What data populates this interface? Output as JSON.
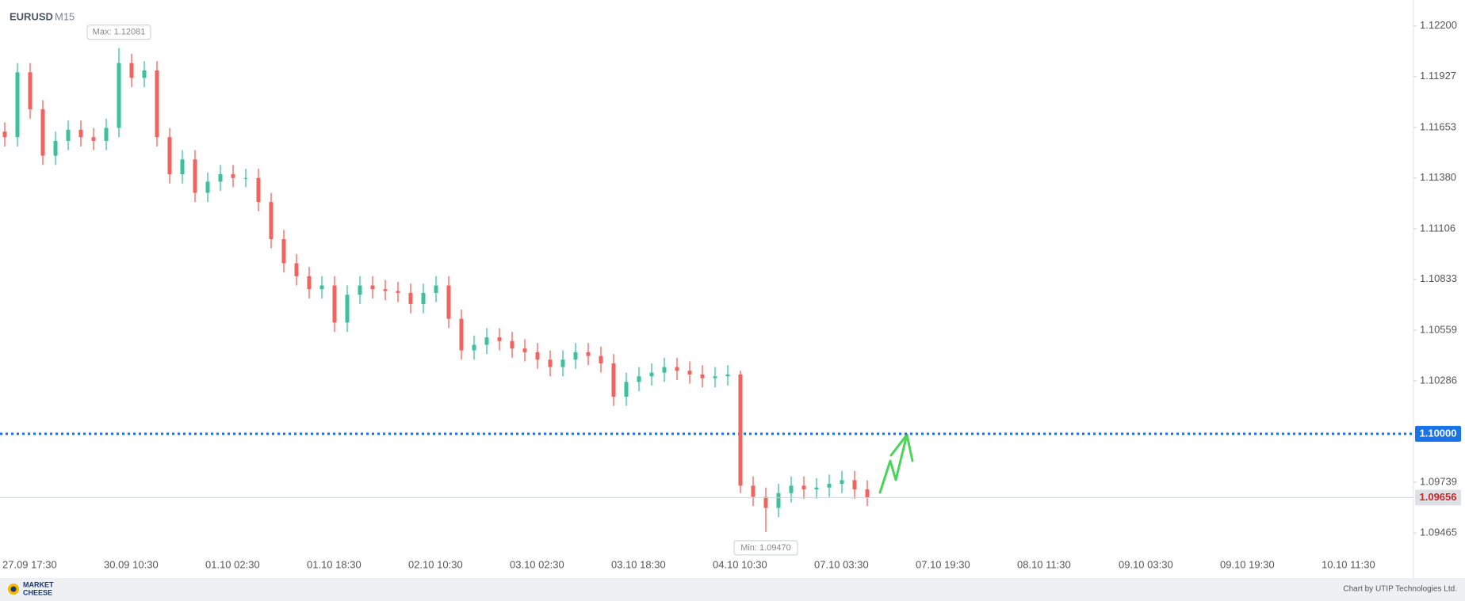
{
  "header": {
    "symbol": "EURUSD",
    "timeframe": "M15"
  },
  "chart_data": {
    "type": "candlestick",
    "categories": [
      "27.09 17:30",
      null,
      null,
      null,
      null,
      null,
      null,
      null,
      "30.09 10:30",
      null,
      null,
      null,
      null,
      null,
      null,
      null,
      "01.10 02:30",
      null,
      null,
      null,
      null,
      null,
      null,
      null,
      "01.10 18:30",
      null,
      null,
      null,
      null,
      null,
      null,
      null,
      "02.10 10:30",
      null,
      null,
      null,
      null,
      null,
      null,
      null,
      "03.10 02:30",
      null,
      null,
      null,
      null,
      null,
      null,
      null,
      "03.10 18:30",
      null,
      null,
      null,
      null,
      null,
      null,
      null,
      "04.10 10:30",
      null,
      null,
      null,
      null,
      null,
      null,
      null,
      "07.10 03:30",
      null,
      null,
      null,
      null,
      null,
      null,
      null,
      "07.10 19:30",
      null,
      null,
      null,
      null,
      null,
      null,
      null,
      "08.10 11:30",
      null,
      null,
      null,
      null,
      null,
      null,
      null,
      "09.10 03:30",
      null,
      null,
      null,
      null,
      null,
      null,
      null,
      "09.10 19:30",
      null,
      null,
      null,
      null,
      null,
      null,
      null,
      "10.10 11:30",
      null,
      null,
      null,
      null,
      null,
      null,
      null
    ],
    "open": [
      1.1163,
      1.116,
      1.1195,
      1.1175,
      1.115,
      1.1158,
      1.1164,
      1.116,
      1.1158,
      1.1165,
      1.12,
      1.1192,
      1.1196,
      1.116,
      1.114,
      1.1148,
      1.113,
      1.1136,
      1.114,
      1.1138,
      1.1138,
      1.1125,
      1.1105,
      1.1092,
      1.1085,
      1.1078,
      1.108,
      1.106,
      1.1075,
      1.108,
      1.1078,
      1.1077,
      1.1076,
      1.107,
      1.1076,
      1.108,
      1.1062,
      1.1045,
      1.1048,
      1.1052,
      1.105,
      1.1046,
      1.1044,
      1.104,
      1.1036,
      1.104,
      1.1044,
      1.1042,
      1.1038,
      1.102,
      1.1028,
      1.1031,
      1.1033,
      1.1036,
      1.1034,
      1.1032,
      1.103,
      1.1031,
      1.1032,
      1.0972,
      1.0966,
      1.096,
      1.0968,
      1.0972,
      1.097,
      1.0971,
      1.0973,
      1.0975,
      1.097,
      null,
      null,
      null,
      null,
      null,
      null,
      null,
      null,
      null,
      null,
      null,
      null,
      null,
      null,
      null,
      null,
      null,
      null,
      null,
      null,
      null,
      null,
      null,
      null,
      null,
      null,
      null,
      null,
      null,
      null,
      null,
      null,
      null,
      null,
      null,
      null,
      null,
      null,
      null,
      null,
      null,
      null,
      null
    ],
    "high": [
      1.1168,
      1.12,
      1.12,
      1.118,
      1.1163,
      1.1169,
      1.1169,
      1.1165,
      1.117,
      1.12081,
      1.1205,
      1.1201,
      1.1201,
      1.1165,
      1.1153,
      1.1153,
      1.1141,
      1.1145,
      1.1145,
      1.1143,
      1.1143,
      1.113,
      1.111,
      1.1097,
      1.109,
      1.1085,
      1.1085,
      1.108,
      1.1085,
      1.1085,
      1.1083,
      1.1082,
      1.1081,
      1.1081,
      1.1085,
      1.1085,
      1.1067,
      1.1053,
      1.1057,
      1.1057,
      1.1055,
      1.1051,
      1.1049,
      1.1045,
      1.1045,
      1.1049,
      1.1049,
      1.1047,
      1.1043,
      1.1033,
      1.1036,
      1.1038,
      1.1041,
      1.1041,
      1.1039,
      1.1037,
      1.1036,
      1.1037,
      1.1034,
      1.0977,
      1.0971,
      1.0973,
      1.0977,
      1.0977,
      1.0976,
      1.0978,
      1.098,
      1.098,
      1.0975,
      null,
      null,
      null,
      null,
      null,
      null,
      null,
      null,
      null,
      null,
      null,
      null,
      null,
      null,
      null,
      null,
      null,
      null,
      null,
      null,
      null,
      null,
      null,
      null,
      null,
      null,
      null,
      null,
      null,
      null,
      null,
      null,
      null,
      null,
      null,
      null,
      null,
      null,
      null,
      null,
      null,
      null,
      null
    ],
    "low": [
      1.1155,
      1.1155,
      1.117,
      1.1145,
      1.1145,
      1.1153,
      1.1155,
      1.1153,
      1.1153,
      1.116,
      1.1187,
      1.1187,
      1.1155,
      1.1135,
      1.1135,
      1.1125,
      1.1125,
      1.1131,
      1.1133,
      1.1133,
      1.112,
      1.11,
      1.1087,
      1.108,
      1.1073,
      1.1073,
      1.1055,
      1.1055,
      1.107,
      1.1073,
      1.1072,
      1.1071,
      1.1065,
      1.1065,
      1.1071,
      1.1057,
      1.104,
      1.104,
      1.1043,
      1.1045,
      1.1041,
      1.1039,
      1.1035,
      1.1031,
      1.1031,
      1.1035,
      1.1037,
      1.1033,
      1.1015,
      1.1015,
      1.1023,
      1.1026,
      1.1028,
      1.1029,
      1.1027,
      1.1025,
      1.1025,
      1.1026,
      1.0968,
      1.0961,
      1.0947,
      1.0955,
      1.0963,
      1.0965,
      1.0965,
      1.0966,
      1.0968,
      1.0965,
      1.0961,
      null,
      null,
      null,
      null,
      null,
      null,
      null,
      null,
      null,
      null,
      null,
      null,
      null,
      null,
      null,
      null,
      null,
      null,
      null,
      null,
      null,
      null,
      null,
      null,
      null,
      null,
      null,
      null,
      null,
      null,
      null,
      null,
      null,
      null,
      null,
      null,
      null,
      null,
      null,
      null,
      null,
      null,
      null
    ],
    "close": [
      1.116,
      1.1195,
      1.1175,
      1.115,
      1.1158,
      1.1164,
      1.116,
      1.1158,
      1.1165,
      1.12,
      1.1192,
      1.1196,
      1.116,
      1.114,
      1.1148,
      1.113,
      1.1136,
      1.114,
      1.1138,
      1.1138,
      1.1125,
      1.1105,
      1.1092,
      1.1085,
      1.1078,
      1.108,
      1.106,
      1.1075,
      1.108,
      1.1078,
      1.1077,
      1.1076,
      1.107,
      1.1076,
      1.108,
      1.1062,
      1.1045,
      1.1048,
      1.1052,
      1.105,
      1.1046,
      1.1044,
      1.104,
      1.1036,
      1.104,
      1.1044,
      1.1042,
      1.1038,
      1.102,
      1.1028,
      1.1031,
      1.1033,
      1.1036,
      1.1034,
      1.1032,
      1.103,
      1.1031,
      1.1032,
      1.0972,
      1.0966,
      1.096,
      1.0968,
      1.0972,
      1.097,
      1.0971,
      1.0973,
      1.0975,
      1.097,
      1.09656,
      null,
      null,
      null,
      null,
      null,
      null,
      null,
      null,
      null,
      null,
      null,
      null,
      null,
      null,
      null,
      null,
      null,
      null,
      null,
      null,
      null,
      null,
      null,
      null,
      null,
      null,
      null,
      null,
      null,
      null,
      null,
      null,
      null,
      null,
      null,
      null,
      null,
      null,
      null,
      null,
      null,
      null,
      null
    ],
    "up_color": "#3fbf9b",
    "down_color": "#ef6461",
    "ylim": [
      1.0935,
      1.1234
    ],
    "yticks": [
      {
        "value": 1.122,
        "label": "1.12200"
      },
      1.11927,
      1.11653,
      {
        "value": 1.1138,
        "label": "1.11380"
      },
      1.11106,
      1.10833,
      1.10559,
      1.10286,
      1.09739,
      1.09465
    ],
    "level": {
      "value": 1.1,
      "label": "1.10000",
      "color": "#1a73e8"
    },
    "annotations": [
      "Max: 1.12081",
      "Min: 1.09470"
    ]
  },
  "footer": {
    "logo": [
      "MARKET",
      "CHEESE"
    ],
    "credit": "Chart by UTIP Technologies Ltd."
  }
}
